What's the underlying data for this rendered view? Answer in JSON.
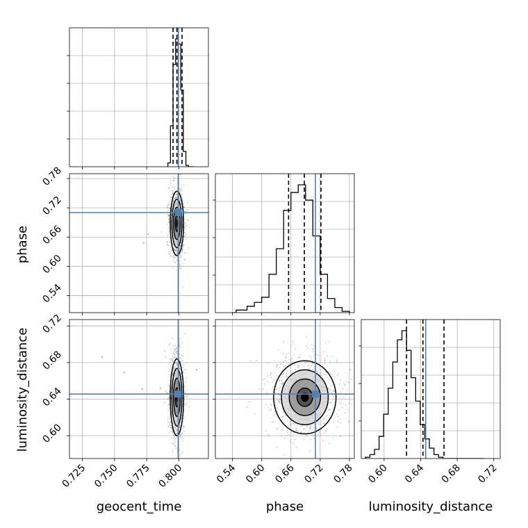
{
  "chart_data": {
    "type": "corner",
    "colors": {
      "truth": "#4f81b4",
      "hist": "#000000",
      "samples": "#808080",
      "grid": "#b0b0b0"
    },
    "parameters": [
      {
        "name": "geocent_time",
        "label": "geocent_time",
        "range": [
          0.715,
          0.823
        ],
        "ticks": [
          0.725,
          0.75,
          0.775,
          0.8
        ],
        "tick_labels": [
          "0.725",
          "0.750",
          "0.775",
          "0.800"
        ],
        "truth": 0.7995,
        "quantiles": [
          0.7955,
          0.7985,
          0.8025
        ]
      },
      {
        "name": "phase",
        "label": "phase",
        "range": [
          0.505,
          0.79
        ],
        "ticks": [
          0.54,
          0.6,
          0.66,
          0.72,
          0.78
        ],
        "tick_labels": [
          "0.54",
          "0.60",
          "0.66",
          "0.72",
          "0.78"
        ],
        "truth": 0.7102,
        "quantiles": [
          0.6552,
          0.6875,
          0.7215
        ]
      },
      {
        "name": "luminosity_distance",
        "label": "luminosity_distance",
        "range": [
          0.575,
          0.727
        ],
        "ticks": [
          0.6,
          0.64,
          0.68,
          0.72
        ],
        "tick_labels": [
          "0.60",
          "0.64",
          "0.68",
          "0.72"
        ],
        "truth": 0.6455,
        "quantiles": [
          0.6245,
          0.6425,
          0.6655
        ]
      }
    ],
    "histograms": [
      {
        "parameter": "geocent_time",
        "bin_edges": [
          0.7915,
          0.7935,
          0.7955,
          0.7975,
          0.7995,
          0.8015,
          0.8035,
          0.8055,
          0.8075,
          0.8095,
          0.8115
        ],
        "counts": [
          0.03,
          0.32,
          0.8,
          1.0,
          0.96,
          0.6,
          0.12,
          0.01,
          0.0,
          0.0
        ]
      },
      {
        "parameter": "phase",
        "bin_edges": [
          0.54,
          0.5475,
          0.555,
          0.5625,
          0.57,
          0.5775,
          0.585,
          0.5925,
          0.6,
          0.6075,
          0.615,
          0.6225,
          0.63,
          0.6375,
          0.645,
          0.6525,
          0.66,
          0.6675,
          0.675,
          0.6825,
          0.69,
          0.6975,
          0.705,
          0.7125,
          0.72,
          0.7275,
          0.735,
          0.7425,
          0.75,
          0.7575,
          0.765,
          0.7725,
          0.78
        ],
        "counts": [
          0.0,
          0.02,
          0.02,
          0.02,
          0.05,
          0.05,
          0.08,
          0.08,
          0.12,
          0.12,
          0.3,
          0.3,
          0.5,
          0.5,
          0.8,
          0.8,
          0.94,
          0.94,
          1.0,
          1.0,
          0.88,
          0.88,
          0.6,
          0.6,
          0.3,
          0.3,
          0.11,
          0.11,
          0.04,
          0.04,
          0.01,
          0.01
        ]
      },
      {
        "parameter": "luminosity_distance",
        "bin_edges": [
          0.5795,
          0.5845,
          0.5895,
          0.5945,
          0.5995,
          0.6045,
          0.6095,
          0.6145,
          0.6195,
          0.6245,
          0.6295,
          0.6345,
          0.6395,
          0.6445,
          0.6495,
          0.6545,
          0.6595,
          0.6645,
          0.6695,
          0.6745,
          0.6795,
          0.6845,
          0.6895,
          0.6945,
          0.6995,
          0.7045,
          0.7095
        ],
        "counts": [
          0.01,
          0.03,
          0.07,
          0.17,
          0.34,
          0.54,
          0.74,
          0.91,
          0.98,
          0.83,
          0.62,
          0.44,
          0.26,
          0.15,
          0.08,
          0.03,
          0.01,
          0.0,
          0.0,
          0.0,
          0.0,
          0.0,
          0.0,
          0.0,
          0.0,
          0.0
        ]
      }
    ],
    "scatter_panels": [
      {
        "x": "geocent_time",
        "y": "phase",
        "center": [
          0.7985,
          0.688
        ],
        "sigma": [
          0.0026,
          0.033
        ],
        "contours": [
          0.5,
          1.0,
          1.5,
          2.0
        ],
        "shaded_levels": [
          0.5,
          1.0,
          1.5
        ],
        "outliers": [
          [
            0.7725,
            0.648
          ],
          [
            0.7763,
            0.666
          ]
        ]
      },
      {
        "x": "geocent_time",
        "y": "luminosity_distance",
        "center": [
          0.7985,
          0.642
        ],
        "sigma": [
          0.0026,
          0.021
        ],
        "contours": [
          0.5,
          1.0,
          1.5,
          2.0
        ],
        "shaded_levels": [
          0.5,
          1.0,
          1.5
        ],
        "outliers": [
          [
            0.7405,
            0.686
          ],
          [
            0.7575,
            0.669
          ],
          [
            0.7715,
            0.651
          ],
          [
            0.7858,
            0.652
          ],
          [
            0.8138,
            0.672
          ]
        ]
      },
      {
        "x": "phase",
        "y": "luminosity_distance",
        "center": [
          0.6885,
          0.642
        ],
        "sigma": [
          0.032,
          0.02
        ],
        "contours": [
          0.5,
          1.0,
          1.5,
          2.0
        ],
        "shaded_levels": [
          0.5,
          1.0,
          1.5
        ],
        "outliers": []
      }
    ]
  }
}
